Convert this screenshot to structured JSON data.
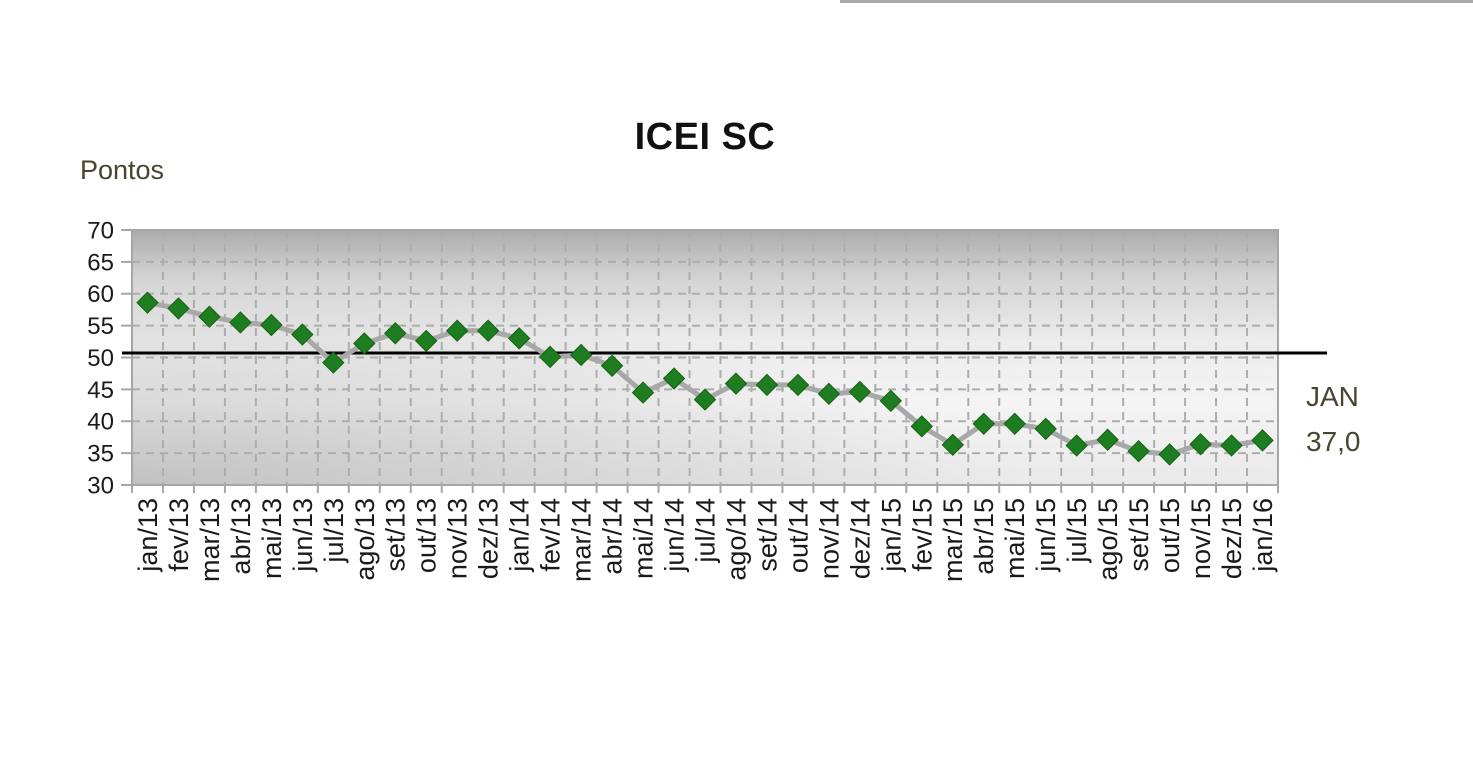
{
  "decor": {
    "top_rule_color": "#a8a8a8"
  },
  "chart_data": {
    "type": "line",
    "title": "ICEI SC",
    "ylabel": "Pontos",
    "xlabel": "",
    "categories": [
      "jan/13",
      "fev/13",
      "mar/13",
      "abr/13",
      "mai/13",
      "jun/13",
      "jul/13",
      "ago/13",
      "set/13",
      "out/13",
      "nov/13",
      "dez/13",
      "jan/14",
      "fev/14",
      "mar/14",
      "abr/14",
      "mai/14",
      "jun/14",
      "jul/14",
      "ago/14",
      "set/14",
      "out/14",
      "nov/14",
      "dez/14",
      "jan/15",
      "fev/15",
      "mar/15",
      "abr/15",
      "mai/15",
      "jun/15",
      "jul/15",
      "ago/15",
      "set/15",
      "out/15",
      "nov/15",
      "dez/15",
      "jan/16"
    ],
    "series": [
      {
        "name": "ICEI SC",
        "values": [
          58.6,
          57.7,
          56.4,
          55.5,
          55.1,
          53.6,
          49.2,
          52.2,
          53.8,
          52.6,
          54.2,
          54.2,
          53.0,
          50.1,
          50.4,
          48.7,
          44.5,
          46.7,
          43.4,
          45.9,
          45.7,
          45.7,
          44.3,
          44.6,
          43.2,
          39.2,
          36.3,
          39.6,
          39.6,
          38.8,
          36.2,
          37.1,
          35.3,
          34.8,
          36.4,
          36.2,
          37.0
        ]
      }
    ],
    "ylim": [
      30,
      70
    ],
    "yticks": [
      30,
      35,
      40,
      45,
      50,
      55,
      60,
      65,
      70
    ],
    "grid": true,
    "legend_position": "none",
    "marker_shape": "diamond",
    "x_tick_label_rotation": 90,
    "reference_line": {
      "value": 50.7,
      "color": "#000000"
    },
    "annotation": {
      "label": "JAN",
      "value_text": "37,0",
      "value": 37.0,
      "position": "right-of-last-point"
    },
    "colors": {
      "marker": "#1e7d20",
      "marker_edge": "#156312",
      "series_line": "#a8a8a8",
      "grid_line": "#adadad",
      "axis_line": "#a6a6a6",
      "tick_text": "#1a1a1a",
      "unit_text": "#4a442e",
      "title_text": "#111111",
      "plot_bg_top": "#ababab",
      "plot_bg_light": "#f4f4f4"
    }
  }
}
